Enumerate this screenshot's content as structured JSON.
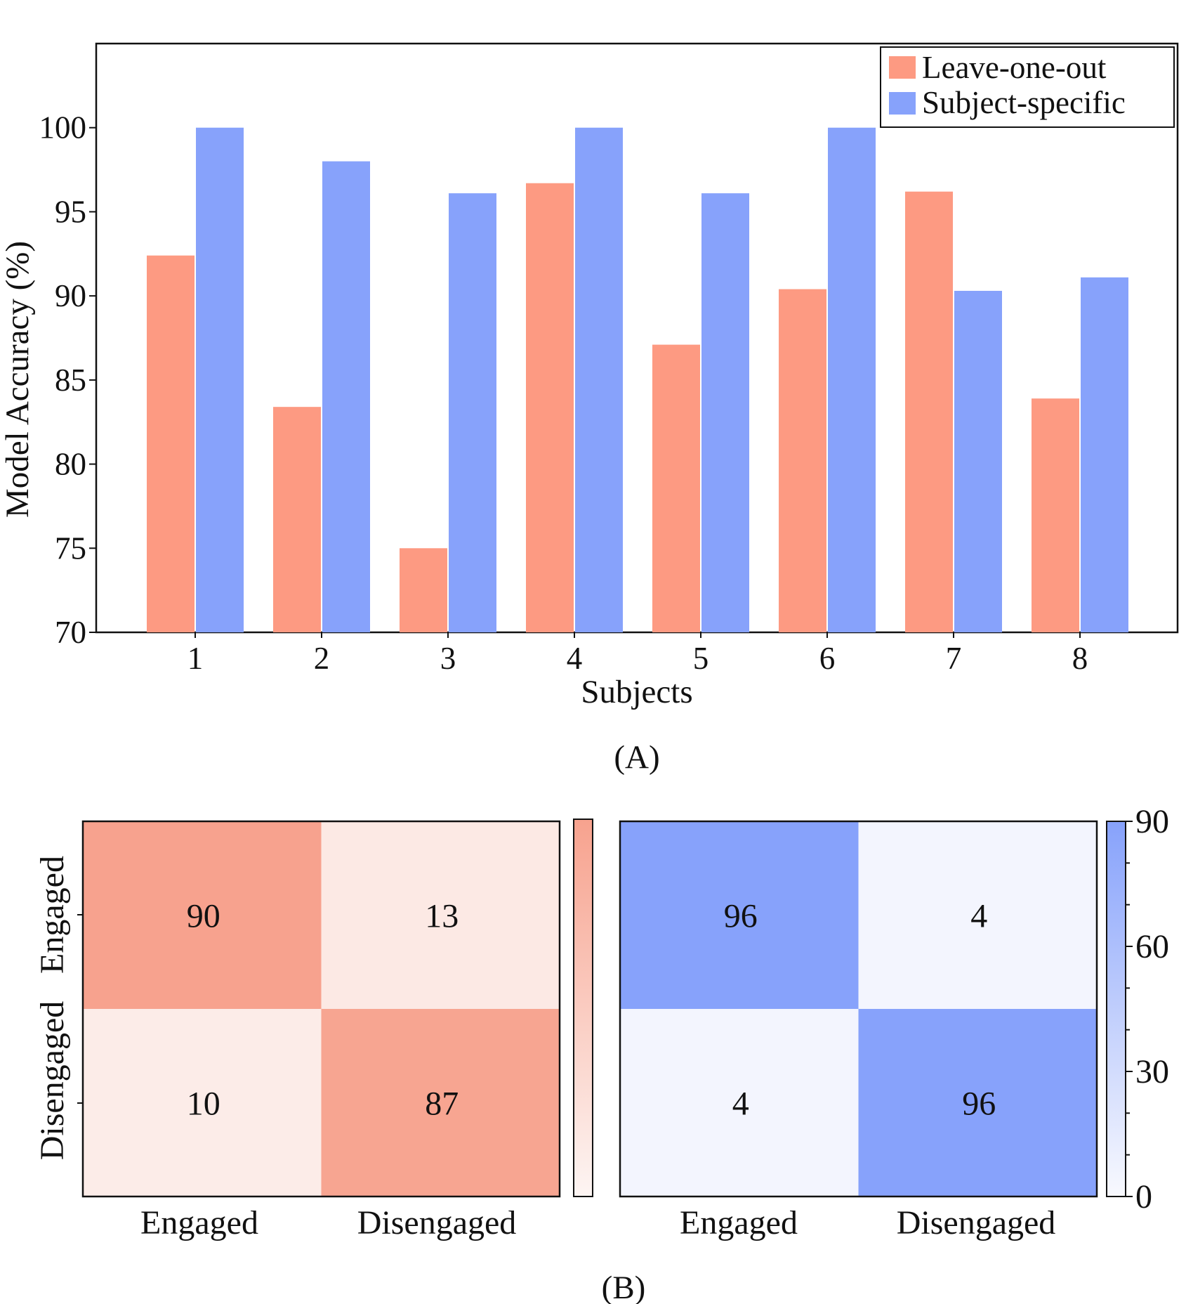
{
  "chart_data": [
    {
      "type": "bar",
      "panel_label": "(A)",
      "categories": [
        "1",
        "2",
        "3",
        "4",
        "5",
        "6",
        "7",
        "8"
      ],
      "series": [
        {
          "name": "Leave-one-out",
          "color": "#fd9a82",
          "values": [
            92.4,
            83.4,
            75.0,
            96.7,
            87.1,
            90.4,
            96.2,
            83.9
          ]
        },
        {
          "name": "Subject-specific",
          "color": "#87a2fb",
          "values": [
            100.0,
            98.0,
            96.1,
            100.0,
            96.1,
            100.0,
            90.3,
            91.1
          ]
        }
      ],
      "xlabel": "Subjects",
      "ylabel": "Model Accuracy (%)",
      "ylim": [
        70,
        105
      ],
      "yticks": [
        "70",
        "75",
        "80",
        "85",
        "90",
        "95",
        "100"
      ],
      "legend": {
        "placement": "top-right"
      },
      "grid": false
    },
    {
      "type": "heatmap",
      "panel_label": "(B)",
      "rows": [
        "Engaged",
        "Disengaged"
      ],
      "cols": [
        "Engaged",
        "Disengaged"
      ],
      "values": [
        [
          90,
          13
        ],
        [
          10,
          87
        ]
      ],
      "cells_text": [
        [
          "90",
          "13"
        ],
        [
          "10",
          "87"
        ]
      ],
      "colormap": [
        "#fdf5f3",
        "#f7a28e"
      ],
      "colorbar": {
        "range": [
          0,
          90
        ],
        "ticks": []
      }
    },
    {
      "type": "heatmap",
      "rows": [
        "Engaged",
        "Disengaged"
      ],
      "cols": [
        "Engaged",
        "Disengaged"
      ],
      "values": [
        [
          96,
          4
        ],
        [
          4,
          96
        ]
      ],
      "cells_text": [
        [
          "96",
          "4"
        ],
        [
          "4",
          "96"
        ]
      ],
      "colormap": [
        "#f8f9fe",
        "#87a2fb"
      ],
      "colorbar": {
        "range": [
          0,
          90
        ],
        "ticks": [
          "0",
          "30",
          "60",
          "90"
        ]
      }
    }
  ]
}
